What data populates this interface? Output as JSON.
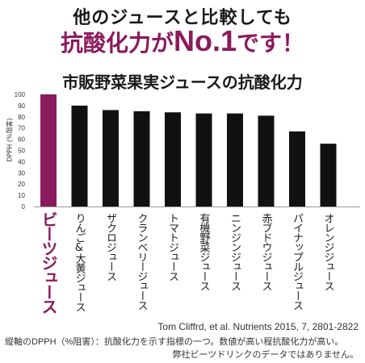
{
  "headline": {
    "line1": "他のジュースと比較しても",
    "line2_prefix": "抗酸化力が",
    "line2_big": "No.1",
    "line2_suffix": "です！"
  },
  "chart_data": {
    "type": "bar",
    "title": "市販野菜果実ジュースの抗酸化力",
    "ylabel": "DPPH (%阻害)",
    "ylim": [
      0,
      100
    ],
    "yticks": [
      0,
      10,
      20,
      30,
      40,
      50,
      60,
      70,
      80,
      90,
      100
    ],
    "categories": [
      "ビーツジュース",
      "りんご&大黄ジュース",
      "ザクロジュース",
      "クランベリージュース",
      "トマトジュース",
      "有機野菜ジュース",
      "ニンジンジュース",
      "赤ブドウジュース",
      "パイナップルジュース",
      "オレンジジュース"
    ],
    "values": [
      100,
      90,
      86,
      85,
      84,
      83,
      83,
      81,
      67,
      56
    ],
    "colors": {
      "highlight": "#8b1a5c",
      "default": "#111111"
    },
    "grid": false,
    "legend": "none"
  },
  "footnotes": {
    "citation": "Tom Cliffrd, et al. Nutrients 2015, 7, 2801-2822",
    "note1": "縦軸のDPPH（%阻害）：抗酸化力を示す指標の一つ。数値が高い程抗酸化力が高い。",
    "note2": "弊社ビーツドリンクのデータではありません。"
  }
}
